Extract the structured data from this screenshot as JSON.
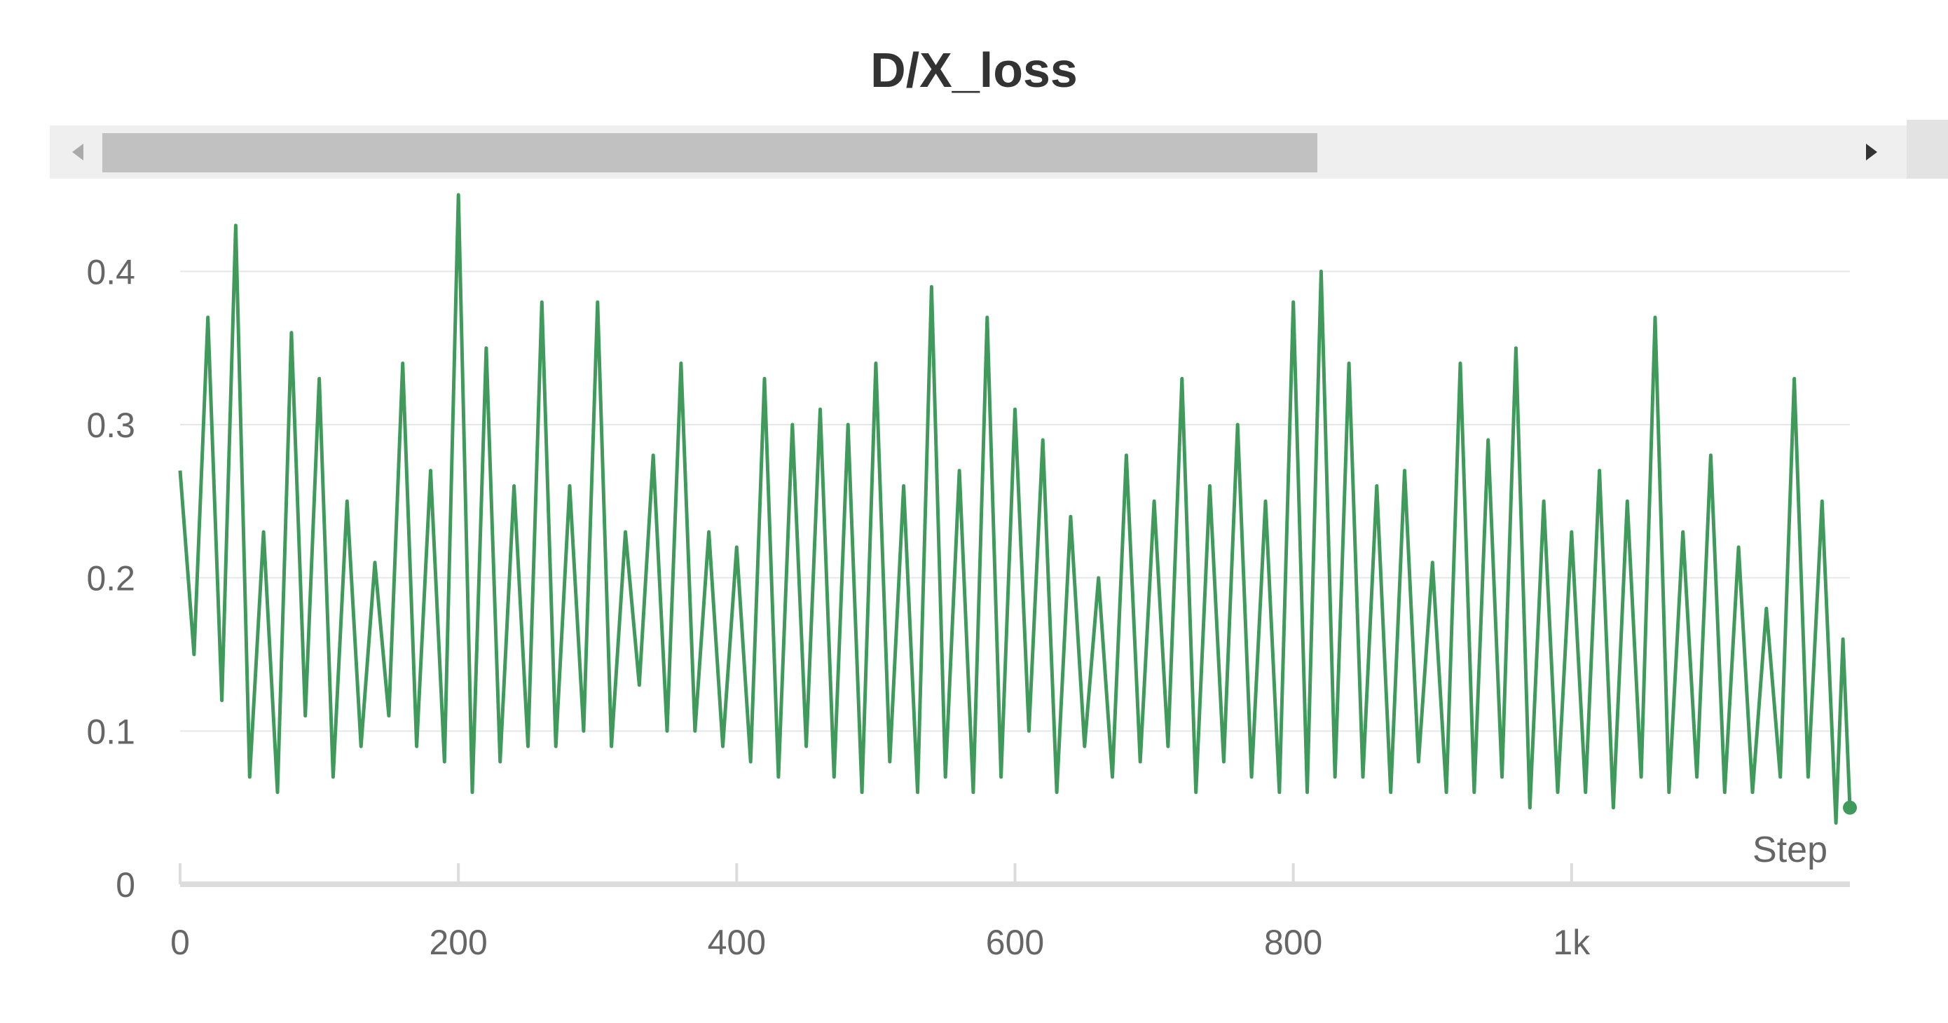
{
  "panel": {
    "title": "D/X_loss"
  },
  "colors": {
    "series": "#3f9a5c",
    "grid": "#e6e6e6",
    "axis_text": "#666666",
    "axis_line": "#dcdcdc"
  },
  "scroll": {
    "left_icon": "triangle-left-icon",
    "right_icon": "triangle-right-icon"
  },
  "chart_data": {
    "type": "line",
    "title": "D/X_loss",
    "xlabel": "Step",
    "ylabel": "",
    "xlim": [
      0,
      1200
    ],
    "ylim": [
      0,
      0.45
    ],
    "x_ticks": [
      0,
      200,
      400,
      600,
      800,
      1000
    ],
    "x_tick_labels": [
      "0",
      "200",
      "400",
      "600",
      "800",
      "1k"
    ],
    "y_ticks": [
      0,
      0.1,
      0.2,
      0.3,
      0.4
    ],
    "y_tick_labels": [
      "0",
      "0.1",
      "0.2",
      "0.3",
      "0.4"
    ],
    "grid": true,
    "legend": "none",
    "series": [
      {
        "color": "#3f9a5c",
        "x": [
          0,
          10,
          20,
          30,
          40,
          50,
          60,
          70,
          80,
          90,
          100,
          110,
          120,
          130,
          140,
          150,
          160,
          170,
          180,
          190,
          200,
          210,
          220,
          230,
          240,
          250,
          260,
          270,
          280,
          290,
          300,
          310,
          320,
          330,
          340,
          350,
          360,
          370,
          380,
          390,
          400,
          410,
          420,
          430,
          440,
          450,
          460,
          470,
          480,
          490,
          500,
          510,
          520,
          530,
          540,
          550,
          560,
          570,
          580,
          590,
          600,
          610,
          620,
          630,
          640,
          650,
          660,
          670,
          680,
          690,
          700,
          710,
          720,
          730,
          740,
          750,
          760,
          770,
          780,
          790,
          800,
          810,
          820,
          830,
          840,
          850,
          860,
          870,
          880,
          890,
          900,
          910,
          920,
          930,
          940,
          950,
          960,
          970,
          980,
          990,
          1000,
          1010,
          1020,
          1030,
          1040,
          1050,
          1060,
          1070,
          1080,
          1090,
          1100,
          1110,
          1120,
          1130,
          1140,
          1150,
          1160,
          1170,
          1180,
          1190,
          1195,
          1200
        ],
        "y": [
          0.27,
          0.15,
          0.37,
          0.12,
          0.43,
          0.07,
          0.23,
          0.06,
          0.36,
          0.11,
          0.33,
          0.07,
          0.25,
          0.09,
          0.21,
          0.11,
          0.34,
          0.09,
          0.27,
          0.08,
          0.45,
          0.06,
          0.35,
          0.08,
          0.26,
          0.09,
          0.38,
          0.09,
          0.26,
          0.1,
          0.38,
          0.09,
          0.23,
          0.13,
          0.28,
          0.1,
          0.34,
          0.1,
          0.23,
          0.09,
          0.22,
          0.08,
          0.33,
          0.07,
          0.3,
          0.09,
          0.31,
          0.07,
          0.3,
          0.06,
          0.34,
          0.08,
          0.26,
          0.06,
          0.39,
          0.07,
          0.27,
          0.06,
          0.37,
          0.07,
          0.31,
          0.1,
          0.29,
          0.06,
          0.24,
          0.09,
          0.2,
          0.07,
          0.28,
          0.08,
          0.25,
          0.09,
          0.33,
          0.06,
          0.26,
          0.08,
          0.3,
          0.07,
          0.25,
          0.06,
          0.38,
          0.06,
          0.4,
          0.07,
          0.34,
          0.07,
          0.26,
          0.06,
          0.27,
          0.08,
          0.21,
          0.06,
          0.34,
          0.06,
          0.29,
          0.07,
          0.35,
          0.05,
          0.25,
          0.06,
          0.23,
          0.06,
          0.27,
          0.05,
          0.25,
          0.07,
          0.37,
          0.06,
          0.23,
          0.07,
          0.28,
          0.06,
          0.22,
          0.06,
          0.18,
          0.07,
          0.33,
          0.07,
          0.25,
          0.04,
          0.16,
          0.05
        ]
      }
    ]
  }
}
